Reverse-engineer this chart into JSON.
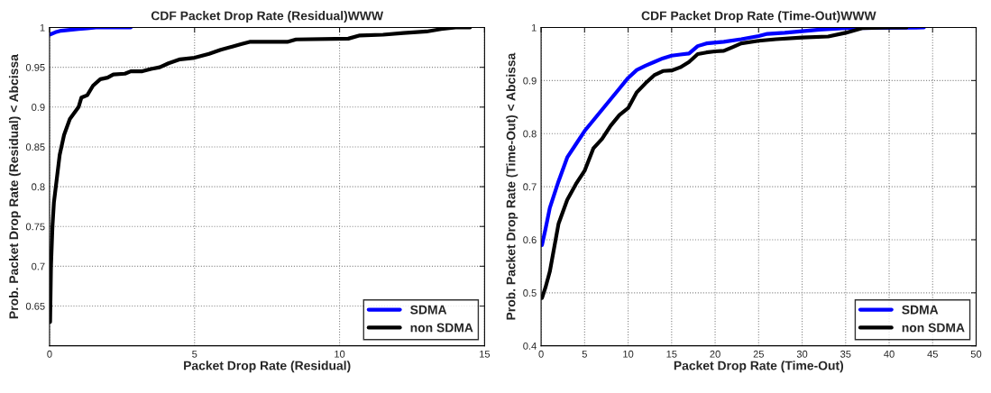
{
  "chart_data": [
    {
      "type": "line",
      "title": "CDF Packet Drop Rate (Residual)WWW",
      "xlabel": "Packet Drop Rate (Residual)",
      "ylabel": "Prob. Packet Drop Rate (Residual) < Abcissa",
      "xlim": [
        0,
        15
      ],
      "ylim": [
        0.6,
        1
      ],
      "xticks": [
        0,
        5,
        10,
        15
      ],
      "yticks": [
        0.65,
        0.7,
        0.75,
        0.8,
        0.85,
        0.9,
        0.95,
        1
      ],
      "grid": true,
      "legend": "bottom right",
      "series": [
        {
          "name": "SDMA",
          "color": "#0000ff",
          "x": [
            0,
            0.2,
            0.4,
            0.7,
            1.0,
            1.3,
            1.6,
            2.8
          ],
          "values": [
            0.991,
            0.994,
            0.996,
            0.997,
            0.998,
            0.999,
            1.0,
            1.0
          ]
        },
        {
          "name": "non SDMA",
          "color": "#000000",
          "x": [
            0.02,
            0.05,
            0.1,
            0.15,
            0.25,
            0.35,
            0.5,
            0.7,
            1.0,
            1.1,
            1.3,
            1.5,
            1.75,
            2.0,
            2.2,
            2.6,
            2.8,
            3.2,
            3.5,
            3.8,
            4.1,
            4.5,
            5.0,
            5.5,
            5.9,
            6.3,
            6.6,
            6.9,
            8.2,
            8.5,
            10.3,
            10.7,
            11.5,
            12.2,
            13,
            13.5,
            14,
            14.5
          ],
          "values": [
            0.63,
            0.7,
            0.75,
            0.78,
            0.81,
            0.84,
            0.865,
            0.885,
            0.9,
            0.912,
            0.915,
            0.927,
            0.935,
            0.937,
            0.941,
            0.942,
            0.945,
            0.945,
            0.948,
            0.95,
            0.955,
            0.96,
            0.962,
            0.967,
            0.972,
            0.976,
            0.979,
            0.982,
            0.982,
            0.985,
            0.986,
            0.99,
            0.991,
            0.993,
            0.995,
            0.998,
            1.0,
            1.0
          ]
        }
      ]
    },
    {
      "type": "line",
      "title": "CDF Packet Drop Rate (Time-Out)WWW",
      "xlabel": "Packet Drop Rate (Time-Out)",
      "ylabel": "Prob. Packet Drop Rate (Time-Out) < Abcissa",
      "xlim": [
        0,
        50
      ],
      "ylim": [
        0.4,
        1
      ],
      "xticks": [
        0,
        5,
        10,
        15,
        20,
        25,
        30,
        35,
        40,
        45,
        50
      ],
      "yticks": [
        0.4,
        0.5,
        0.6,
        0.7,
        0.8,
        0.9,
        1
      ],
      "grid": true,
      "legend": "bottom right",
      "series": [
        {
          "name": "SDMA",
          "color": "#0000ff",
          "x": [
            0.1,
            0.5,
            1,
            2,
            3,
            4,
            5,
            6,
            7,
            8,
            9,
            10,
            11,
            12,
            13,
            14,
            15,
            16,
            17,
            18,
            19,
            21,
            23,
            25,
            26,
            28,
            30,
            32,
            35,
            44
          ],
          "values": [
            0.59,
            0.62,
            0.66,
            0.71,
            0.755,
            0.78,
            0.805,
            0.825,
            0.845,
            0.865,
            0.885,
            0.905,
            0.92,
            0.928,
            0.935,
            0.942,
            0.947,
            0.949,
            0.951,
            0.965,
            0.97,
            0.973,
            0.978,
            0.984,
            0.988,
            0.99,
            0.993,
            0.996,
            0.999,
            1.0
          ]
        },
        {
          "name": "non SDMA",
          "color": "#000000",
          "x": [
            0.1,
            0.5,
            1,
            2,
            3,
            4,
            5,
            6,
            7,
            8,
            9,
            10,
            11,
            12,
            13,
            14,
            15,
            16,
            17,
            18,
            19,
            20,
            21,
            22,
            23,
            25,
            27,
            30,
            33,
            35,
            37,
            40,
            42
          ],
          "values": [
            0.49,
            0.51,
            0.54,
            0.63,
            0.675,
            0.705,
            0.73,
            0.772,
            0.79,
            0.815,
            0.835,
            0.848,
            0.878,
            0.895,
            0.91,
            0.918,
            0.919,
            0.925,
            0.935,
            0.95,
            0.953,
            0.955,
            0.956,
            0.963,
            0.97,
            0.975,
            0.978,
            0.981,
            0.983,
            0.99,
            0.999,
            1.0,
            1.0
          ]
        }
      ]
    }
  ]
}
